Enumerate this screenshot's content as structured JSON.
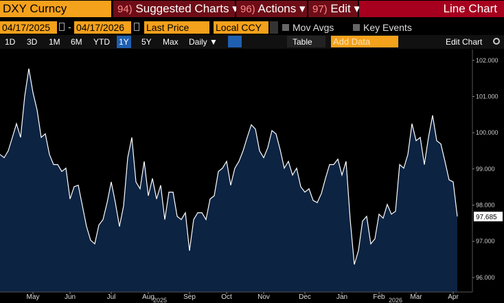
{
  "toolbar": {
    "ticker": "DXY Curncy",
    "menus": [
      {
        "num": "94)",
        "label": "Suggested Charts ▾"
      },
      {
        "num": "96)",
        "label": "Actions ▾"
      },
      {
        "num": "97)",
        "label": "Edit ▾"
      }
    ],
    "chart_kind": "Line Chart"
  },
  "controls": {
    "start_date": "04/17/2025",
    "separator": "-",
    "end_date": "04/17/2026",
    "field": "Last Price",
    "currency": "Local CCY",
    "mov_avgs": "Mov Avgs",
    "key_events": "Key Events",
    "periods": [
      "1D",
      "3D",
      "1M",
      "6M",
      "YTD",
      "1Y",
      "5Y",
      "Max"
    ],
    "frequency": "Daily ▼",
    "table": "Table",
    "add_data": "Add Data",
    "edit_chart": "Edit Chart"
  },
  "chart_data": {
    "type": "area",
    "series": [
      {
        "name": "DXY Curncy",
        "color": "#ffffff",
        "fill": "#0c2342",
        "values": [
          99.4,
          99.31,
          99.5,
          99.87,
          100.25,
          99.87,
          101.01,
          101.77,
          101.11,
          100.63,
          99.87,
          99.97,
          99.4,
          99.12,
          99.12,
          98.93,
          99.02,
          98.17,
          98.51,
          98.55,
          97.98,
          97.41,
          97.03,
          96.93,
          97.45,
          97.6,
          98.07,
          98.64,
          98.07,
          97.41,
          97.98,
          99.31,
          99.87,
          98.64,
          98.45,
          99.21,
          98.26,
          98.74,
          98.17,
          98.55,
          97.6,
          98.36,
          98.36,
          97.69,
          97.6,
          97.79,
          96.74,
          97.6,
          97.79,
          97.79,
          97.6,
          98.17,
          98.26,
          98.93,
          99.02,
          99.21,
          98.55,
          99.02,
          99.21,
          99.5,
          99.87,
          100.22,
          100.1,
          99.5,
          99.31,
          99.59,
          100.06,
          99.97,
          99.53,
          99.02,
          99.21,
          98.83,
          99.02,
          98.51,
          98.36,
          98.45,
          98.13,
          98.07,
          98.32,
          98.74,
          99.12,
          99.12,
          99.27,
          98.83,
          99.21,
          97.6,
          96.36,
          96.74,
          97.56,
          97.69,
          96.93,
          97.07,
          97.75,
          97.64,
          98.02,
          97.75,
          97.83,
          99.12,
          99.02,
          99.4,
          100.25,
          99.78,
          99.87,
          99.12,
          99.87,
          100.48,
          99.78,
          99.69,
          99.21,
          98.7,
          98.64,
          97.685
        ]
      }
    ],
    "categories": [
      null,
      null,
      null,
      null,
      null,
      null,
      null,
      null,
      "May",
      null,
      null,
      null,
      null,
      null,
      null,
      null,
      null,
      "Jun",
      null,
      null,
      null,
      null,
      null,
      null,
      null,
      null,
      null,
      "Jul",
      null,
      null,
      null,
      null,
      null,
      null,
      null,
      null,
      "Aug",
      null,
      null,
      null,
      null,
      null,
      null,
      null,
      null,
      null,
      "Sep",
      null,
      null,
      null,
      null,
      null,
      null,
      null,
      null,
      "Oct",
      null,
      null,
      null,
      null,
      null,
      null,
      null,
      null,
      "Nov",
      null,
      null,
      null,
      null,
      null,
      null,
      null,
      null,
      null,
      "Dec",
      null,
      null,
      null,
      null,
      null,
      null,
      null,
      null,
      "Jan",
      null,
      null,
      null,
      null,
      null,
      null,
      null,
      null,
      "Feb",
      null,
      null,
      null,
      null,
      null,
      null,
      null,
      null,
      "Mar",
      null,
      null,
      null,
      null,
      null,
      null,
      null,
      null,
      "Apr",
      null
    ],
    "year_labels": [
      "2025",
      "2026"
    ],
    "ylim": [
      95.6,
      102.3
    ],
    "yticks": [
      {
        "value": 96,
        "label": "96.000"
      },
      {
        "value": 97,
        "label": "97.000"
      },
      {
        "value": 98,
        "label": "98.000"
      },
      {
        "value": 99,
        "label": "99.000"
      },
      {
        "value": 100,
        "label": "100.000"
      },
      {
        "value": 101,
        "label": "101.000"
      },
      {
        "value": 102,
        "label": "102.000"
      }
    ],
    "grid": false
  }
}
